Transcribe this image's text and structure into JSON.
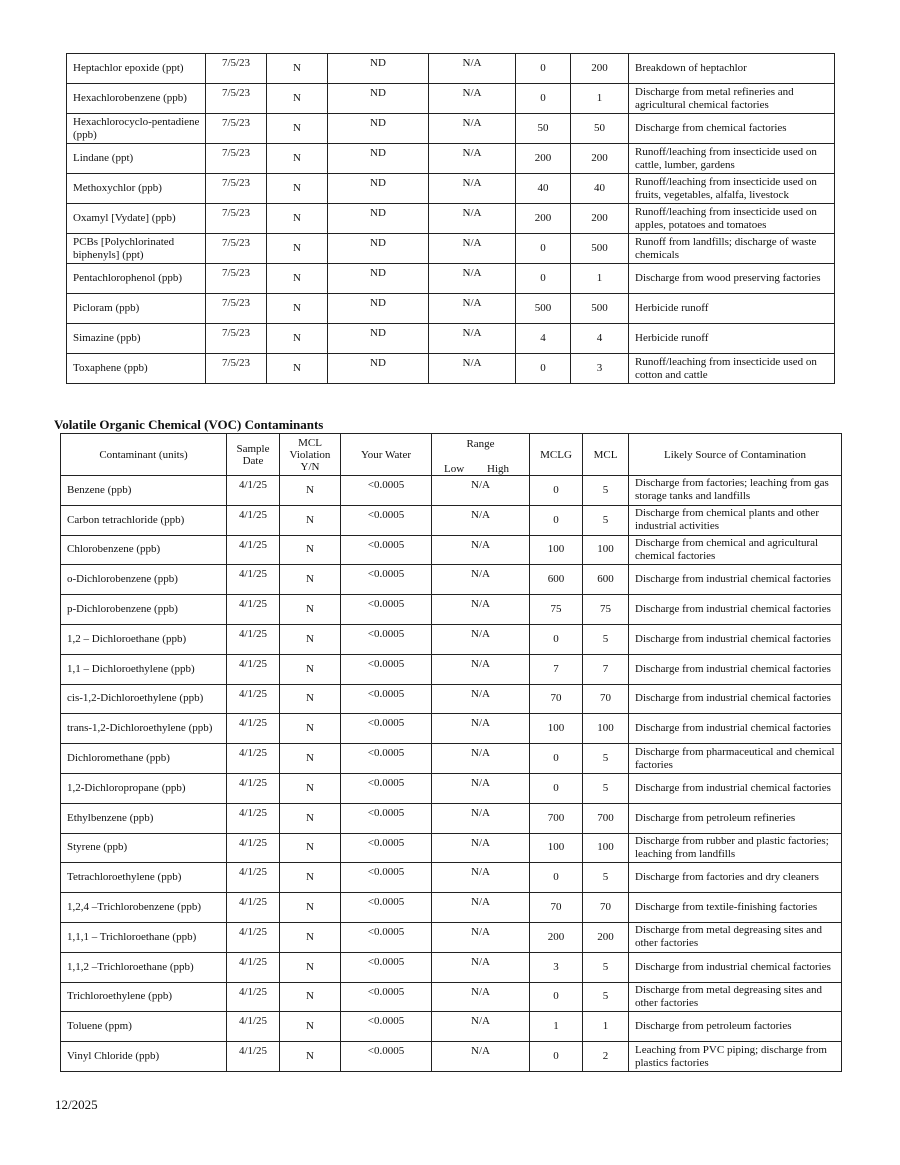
{
  "table1": {
    "rows": [
      {
        "contaminant": "Heptachlor epoxide (ppt)",
        "date": "7/5/23",
        "violation": "N",
        "your_water": "ND",
        "range": "N/A",
        "mclg": "0",
        "mcl": "200",
        "source": "Breakdown of heptachlor"
      },
      {
        "contaminant": "Hexachlorobenzene (ppb)",
        "date": "7/5/23",
        "violation": "N",
        "your_water": "ND",
        "range": "N/A",
        "mclg": "0",
        "mcl": "1",
        "source": "Discharge from metal refineries and agricultural chemical factories"
      },
      {
        "contaminant": "Hexachlorocyclo-pentadiene (ppb)",
        "date": "7/5/23",
        "violation": "N",
        "your_water": "ND",
        "range": "N/A",
        "mclg": "50",
        "mcl": "50",
        "source": "Discharge from chemical factories"
      },
      {
        "contaminant": "Lindane (ppt)",
        "date": "7/5/23",
        "violation": "N",
        "your_water": "ND",
        "range": "N/A",
        "mclg": "200",
        "mcl": "200",
        "source": "Runoff/leaching from insecticide used on cattle, lumber, gardens"
      },
      {
        "contaminant": "Methoxychlor (ppb)",
        "date": "7/5/23",
        "violation": "N",
        "your_water": "ND",
        "range": "N/A",
        "mclg": "40",
        "mcl": "40",
        "source": "Runoff/leaching from insecticide used on fruits, vegetables, alfalfa, livestock"
      },
      {
        "contaminant": "Oxamyl [Vydate] (ppb)",
        "date": "7/5/23",
        "violation": "N",
        "your_water": "ND",
        "range": "N/A",
        "mclg": "200",
        "mcl": "200",
        "source": "Runoff/leaching from insecticide used on apples, potatoes and tomatoes"
      },
      {
        "contaminant": "PCBs [Polychlorinated biphenyls] (ppt)",
        "date": "7/5/23",
        "violation": "N",
        "your_water": "ND",
        "range": "N/A",
        "mclg": "0",
        "mcl": "500",
        "source": "Runoff from landfills; discharge of waste chemicals"
      },
      {
        "contaminant": "Pentachlorophenol (ppb)",
        "date": "7/5/23",
        "violation": "N",
        "your_water": "ND",
        "range": "N/A",
        "mclg": "0",
        "mcl": "1",
        "source": "Discharge from wood preserving factories"
      },
      {
        "contaminant": "Picloram (ppb)",
        "date": "7/5/23",
        "violation": "N",
        "your_water": "ND",
        "range": "N/A",
        "mclg": "500",
        "mcl": "500",
        "source": "Herbicide runoff"
      },
      {
        "contaminant": "Simazine (ppb)",
        "date": "7/5/23",
        "violation": "N",
        "your_water": "ND",
        "range": "N/A",
        "mclg": "4",
        "mcl": "4",
        "source": "Herbicide runoff"
      },
      {
        "contaminant": "Toxaphene (ppb)",
        "date": "7/5/23",
        "violation": "N",
        "your_water": "ND",
        "range": "N/A",
        "mclg": "0",
        "mcl": "3",
        "source": "Runoff/leaching from insecticide used on cotton and cattle"
      }
    ]
  },
  "voc": {
    "title": "Volatile Organic Chemical (VOC) Contaminants",
    "headers": {
      "contaminant": "Contaminant (units)",
      "date": "Sample Date",
      "violation": "MCL Violation Y/N",
      "your_water": "Your Water",
      "range": "Range",
      "low": "Low",
      "high": "High",
      "mclg": "MCLG",
      "mcl": "MCL",
      "source": "Likely Source of Contamination"
    },
    "rows": [
      {
        "contaminant": "Benzene (ppb)",
        "date": "4/1/25",
        "violation": "N",
        "your_water": "<0.0005",
        "range": "N/A",
        "mclg": "0",
        "mcl": "5",
        "source": "Discharge from factories; leaching from gas storage tanks and landfills"
      },
      {
        "contaminant": "Carbon tetrachloride (ppb)",
        "date": "4/1/25",
        "violation": "N",
        "your_water": "<0.0005",
        "range": "N/A",
        "mclg": "0",
        "mcl": "5",
        "source": "Discharge from chemical plants and other industrial activities"
      },
      {
        "contaminant": "Chlorobenzene (ppb)",
        "date": "4/1/25",
        "violation": "N",
        "your_water": "<0.0005",
        "range": "N/A",
        "mclg": "100",
        "mcl": "100",
        "source": "Discharge from chemical and agricultural chemical factories"
      },
      {
        "contaminant": "o-Dichlorobenzene (ppb)",
        "date": "4/1/25",
        "violation": "N",
        "your_water": "<0.0005",
        "range": "N/A",
        "mclg": "600",
        "mcl": "600",
        "source": "Discharge from industrial chemical factories"
      },
      {
        "contaminant": "p-Dichlorobenzene (ppb)",
        "date": "4/1/25",
        "violation": "N",
        "your_water": "<0.0005",
        "range": "N/A",
        "mclg": "75",
        "mcl": "75",
        "source": "Discharge from industrial chemical factories"
      },
      {
        "contaminant": "1,2 – Dichloroethane (ppb)",
        "date": "4/1/25",
        "violation": "N",
        "your_water": "<0.0005",
        "range": "N/A",
        "mclg": "0",
        "mcl": "5",
        "source": "Discharge from industrial chemical factories"
      },
      {
        "contaminant": "1,1 – Dichloroethylene (ppb)",
        "date": "4/1/25",
        "violation": "N",
        "your_water": "<0.0005",
        "range": "N/A",
        "mclg": "7",
        "mcl": "7",
        "source": "Discharge from industrial chemical factories"
      },
      {
        "contaminant": "cis-1,2-Dichloroethylene (ppb)",
        "date": "4/1/25",
        "violation": "N",
        "your_water": "<0.0005",
        "range": "N/A",
        "mclg": "70",
        "mcl": "70",
        "source": "Discharge from industrial chemical factories"
      },
      {
        "contaminant": "trans-1,2-Dichloroethylene (ppb)",
        "date": "4/1/25",
        "violation": "N",
        "your_water": "<0.0005",
        "range": "N/A",
        "mclg": "100",
        "mcl": "100",
        "source": "Discharge from industrial chemical factories"
      },
      {
        "contaminant": "Dichloromethane (ppb)",
        "date": "4/1/25",
        "violation": "N",
        "your_water": "<0.0005",
        "range": "N/A",
        "mclg": "0",
        "mcl": "5",
        "source": "Discharge from pharmaceutical and chemical factories"
      },
      {
        "contaminant": "1,2-Dichloropropane (ppb)",
        "date": "4/1/25",
        "violation": "N",
        "your_water": "<0.0005",
        "range": "N/A",
        "mclg": "0",
        "mcl": "5",
        "source": "Discharge from industrial chemical factories"
      },
      {
        "contaminant": "Ethylbenzene (ppb)",
        "date": "4/1/25",
        "violation": "N",
        "your_water": "<0.0005",
        "range": "N/A",
        "mclg": "700",
        "mcl": "700",
        "source": "Discharge from petroleum refineries"
      },
      {
        "contaminant": "Styrene (ppb)",
        "date": "4/1/25",
        "violation": "N",
        "your_water": "<0.0005",
        "range": "N/A",
        "mclg": "100",
        "mcl": "100",
        "source": "Discharge from rubber and plastic factories; leaching from landfills"
      },
      {
        "contaminant": "Tetrachloroethylene (ppb)",
        "date": "4/1/25",
        "violation": "N",
        "your_water": "<0.0005",
        "range": "N/A",
        "mclg": "0",
        "mcl": "5",
        "source": "Discharge from factories and dry cleaners"
      },
      {
        "contaminant": "1,2,4 –Trichlorobenzene (ppb)",
        "date": "4/1/25",
        "violation": "N",
        "your_water": "<0.0005",
        "range": "N/A",
        "mclg": "70",
        "mcl": "70",
        "source": "Discharge from textile-finishing factories"
      },
      {
        "contaminant": "1,1,1 – Trichloroethane (ppb)",
        "date": "4/1/25",
        "violation": "N",
        "your_water": "<0.0005",
        "range": "N/A",
        "mclg": "200",
        "mcl": "200",
        "source": "Discharge from metal degreasing sites and other factories"
      },
      {
        "contaminant": "1,1,2 –Trichloroethane (ppb)",
        "date": "4/1/25",
        "violation": "N",
        "your_water": "<0.0005",
        "range": "N/A",
        "mclg": "3",
        "mcl": "5",
        "source": "Discharge from industrial chemical factories"
      },
      {
        "contaminant": "Trichloroethylene (ppb)",
        "date": "4/1/25",
        "violation": "N",
        "your_water": "<0.0005",
        "range": "N/A",
        "mclg": "0",
        "mcl": "5",
        "source": "Discharge from metal degreasing sites and other factories"
      },
      {
        "contaminant": "Toluene (ppm)",
        "date": "4/1/25",
        "violation": "N",
        "your_water": "<0.0005",
        "range": "N/A",
        "mclg": "1",
        "mcl": "1",
        "source": "Discharge from petroleum factories"
      },
      {
        "contaminant": "Vinyl Chloride (ppb)",
        "date": "4/1/25",
        "violation": "N",
        "your_water": "<0.0005",
        "range": "N/A",
        "mclg": "0",
        "mcl": "2",
        "source": "Leaching from PVC piping; discharge from plastics factories"
      }
    ]
  },
  "footer": {
    "date": "12/2025"
  }
}
